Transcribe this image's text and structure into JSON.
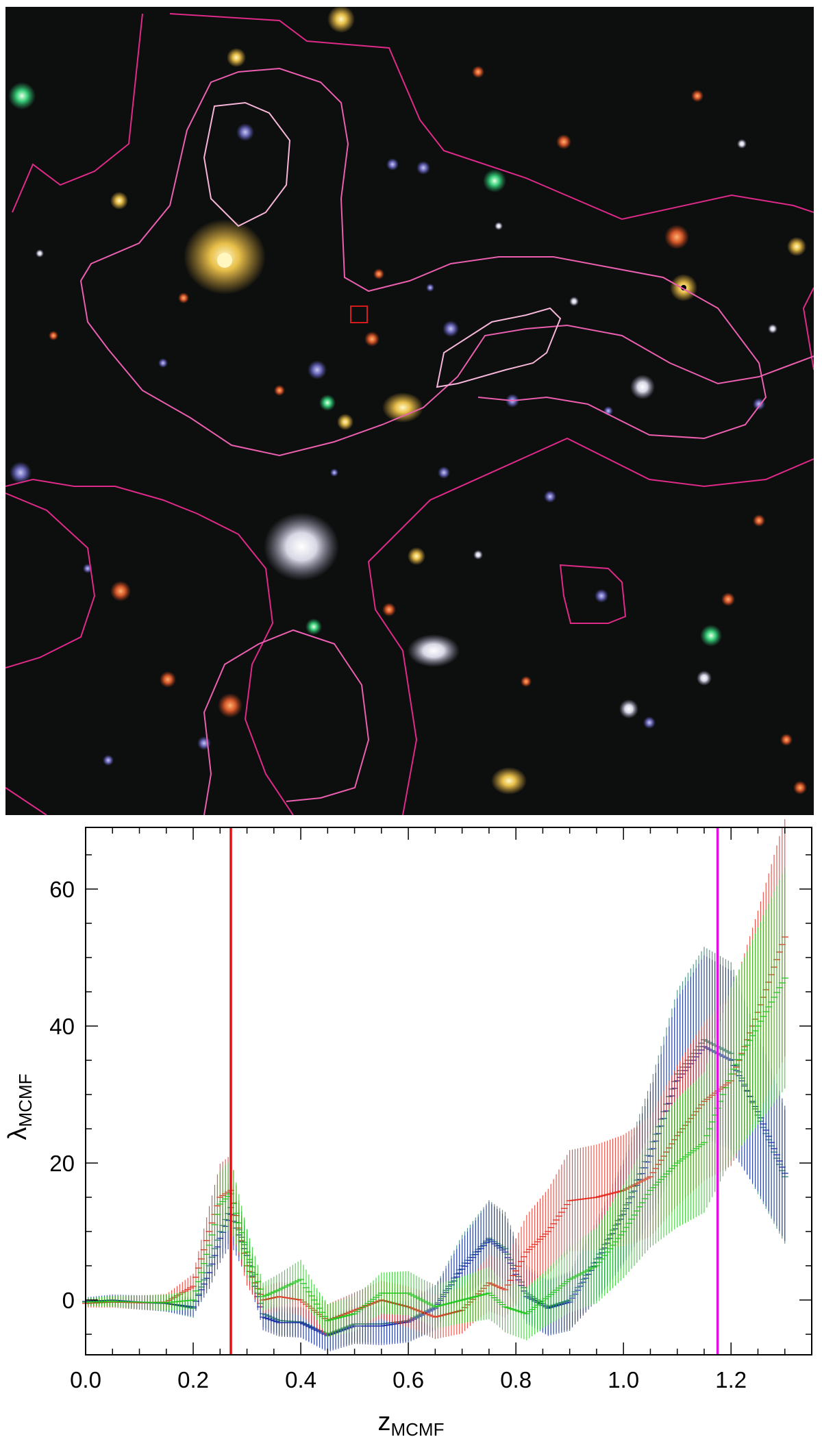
{
  "image": {
    "description_icon": "optical-sky-image",
    "contour_colors": [
      "#e02a8a",
      "#ec5fb0",
      "#f7b6d9"
    ],
    "marker_color": "#d81a1a"
  },
  "chart_data": {
    "type": "scatter",
    "xlabel_main": "z",
    "xlabel_sub": "MCMF",
    "ylabel_main": "λ",
    "ylabel_sub": "MCMF",
    "xlim": [
      0.0,
      1.35
    ],
    "ylim": [
      -8,
      69
    ],
    "xticks": [
      "0.0",
      "0.2",
      "0.4",
      "0.6",
      "0.8",
      "1.0",
      "1.2"
    ],
    "yticks": [
      "0",
      "20",
      "40",
      "60"
    ],
    "grid": false,
    "vlines": [
      {
        "x": 0.27,
        "color": "#e31010"
      },
      {
        "x": 1.175,
        "color": "#e010e0"
      }
    ],
    "series": [
      {
        "color": "#2e7d6f",
        "points": [
          [
            0.0,
            -0.3
          ],
          [
            0.05,
            -0.2
          ],
          [
            0.1,
            -0.4
          ],
          [
            0.15,
            -0.5
          ],
          [
            0.2,
            -1.2
          ],
          [
            0.23,
            5.0
          ],
          [
            0.25,
            10.0
          ],
          [
            0.27,
            13.5
          ],
          [
            0.3,
            7.0
          ],
          [
            0.33,
            -2.0
          ],
          [
            0.36,
            -3.0
          ],
          [
            0.4,
            -3.2
          ],
          [
            0.45,
            -5.0
          ],
          [
            0.5,
            -3.5
          ],
          [
            0.55,
            -3.5
          ],
          [
            0.6,
            -3.0
          ],
          [
            0.65,
            -1.0
          ],
          [
            0.7,
            5.0
          ],
          [
            0.75,
            9.0
          ],
          [
            0.78,
            7.5
          ],
          [
            0.82,
            1.0
          ],
          [
            0.86,
            -1.0
          ],
          [
            0.9,
            0.0
          ],
          [
            0.95,
            6.0
          ],
          [
            1.0,
            13.0
          ],
          [
            1.05,
            22.0
          ],
          [
            1.1,
            33.0
          ],
          [
            1.15,
            38.0
          ],
          [
            1.2,
            36.0
          ],
          [
            1.25,
            27.0
          ],
          [
            1.3,
            18.0
          ]
        ]
      },
      {
        "color": "#1d2fa8",
        "points": [
          [
            0.0,
            -0.2
          ],
          [
            0.05,
            0.0
          ],
          [
            0.1,
            -0.3
          ],
          [
            0.15,
            -0.5
          ],
          [
            0.2,
            -1.0
          ],
          [
            0.23,
            4.0
          ],
          [
            0.25,
            9.0
          ],
          [
            0.27,
            12.5
          ],
          [
            0.3,
            6.5
          ],
          [
            0.33,
            -2.5
          ],
          [
            0.36,
            -3.3
          ],
          [
            0.4,
            -3.3
          ],
          [
            0.45,
            -5.2
          ],
          [
            0.5,
            -3.8
          ],
          [
            0.55,
            -3.8
          ],
          [
            0.6,
            -3.2
          ],
          [
            0.65,
            -1.2
          ],
          [
            0.7,
            4.5
          ],
          [
            0.75,
            8.8
          ],
          [
            0.78,
            7.0
          ],
          [
            0.82,
            0.5
          ],
          [
            0.86,
            -1.2
          ],
          [
            0.9,
            -0.3
          ],
          [
            0.95,
            5.5
          ],
          [
            1.0,
            12.5
          ],
          [
            1.05,
            21.0
          ],
          [
            1.1,
            32.0
          ],
          [
            1.15,
            37.0
          ],
          [
            1.2,
            35.0
          ],
          [
            1.25,
            27.5
          ],
          [
            1.3,
            18.5
          ]
        ]
      },
      {
        "color": "#e32b1f",
        "points": [
          [
            0.0,
            -0.5
          ],
          [
            0.05,
            -0.3
          ],
          [
            0.1,
            -0.4
          ],
          [
            0.15,
            -0.3
          ],
          [
            0.2,
            2.0
          ],
          [
            0.23,
            10.0
          ],
          [
            0.25,
            15.0
          ],
          [
            0.27,
            16.0
          ],
          [
            0.3,
            5.0
          ],
          [
            0.33,
            0.0
          ],
          [
            0.36,
            0.5
          ],
          [
            0.4,
            0.0
          ],
          [
            0.45,
            -3.0
          ],
          [
            0.5,
            -1.5
          ],
          [
            0.55,
            0.0
          ],
          [
            0.6,
            -1.0
          ],
          [
            0.65,
            -2.5
          ],
          [
            0.7,
            -1.5
          ],
          [
            0.75,
            2.5
          ],
          [
            0.78,
            1.5
          ],
          [
            0.82,
            7.0
          ],
          [
            0.86,
            10.0
          ],
          [
            0.9,
            14.5
          ],
          [
            0.95,
            15.0
          ],
          [
            1.0,
            16.0
          ],
          [
            1.05,
            18.0
          ],
          [
            1.1,
            24.0
          ],
          [
            1.15,
            29.0
          ],
          [
            1.2,
            32.0
          ],
          [
            1.25,
            42.0
          ],
          [
            1.3,
            53.0
          ]
        ]
      },
      {
        "color": "#21c71c",
        "points": [
          [
            0.0,
            -0.3
          ],
          [
            0.05,
            -0.2
          ],
          [
            0.1,
            -0.3
          ],
          [
            0.15,
            -0.4
          ],
          [
            0.2,
            0.0
          ],
          [
            0.23,
            8.0
          ],
          [
            0.25,
            14.0
          ],
          [
            0.27,
            15.5
          ],
          [
            0.3,
            7.0
          ],
          [
            0.33,
            0.5
          ],
          [
            0.36,
            1.5
          ],
          [
            0.4,
            3.0
          ],
          [
            0.45,
            -3.0
          ],
          [
            0.5,
            -2.0
          ],
          [
            0.55,
            1.0
          ],
          [
            0.6,
            1.0
          ],
          [
            0.65,
            -1.0
          ],
          [
            0.7,
            0.0
          ],
          [
            0.75,
            1.0
          ],
          [
            0.78,
            -1.0
          ],
          [
            0.82,
            -2.0
          ],
          [
            0.86,
            0.5
          ],
          [
            0.9,
            3.0
          ],
          [
            0.95,
            5.0
          ],
          [
            1.0,
            10.0
          ],
          [
            1.05,
            16.0
          ],
          [
            1.1,
            20.0
          ],
          [
            1.15,
            23.0
          ],
          [
            1.2,
            33.0
          ],
          [
            1.25,
            40.0
          ],
          [
            1.3,
            47.0
          ]
        ]
      }
    ]
  }
}
